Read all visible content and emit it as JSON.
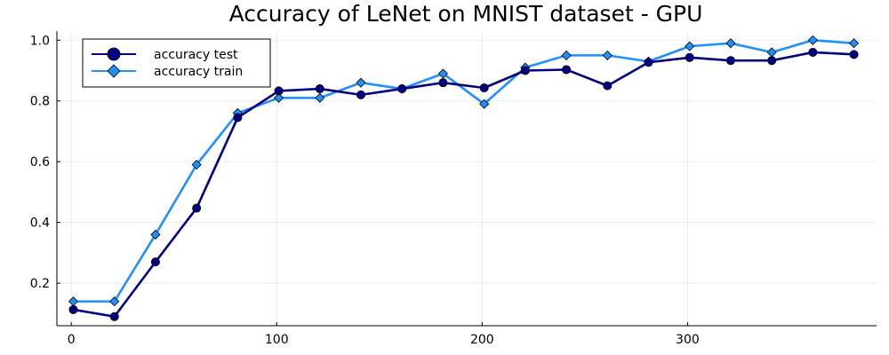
{
  "chart_data": {
    "type": "line",
    "title": "Accuracy of LeNet on MNIST dataset - GPU",
    "xlabel": "",
    "ylabel": "",
    "xlim": [
      -7,
      392
    ],
    "ylim": [
      0.06,
      1.03
    ],
    "xticks": [
      0,
      100,
      200,
      300
    ],
    "yticks": [
      0.2,
      0.4,
      0.6,
      0.8,
      1.0
    ],
    "xtick_labels": [
      "0",
      "100",
      "200",
      "300"
    ],
    "ytick_labels": [
      "0.2",
      "0.4",
      "0.6",
      "0.8",
      "1.0"
    ],
    "grid": true,
    "legend_position": "top-left",
    "x": [
      1,
      21,
      41,
      61,
      81,
      101,
      121,
      141,
      161,
      181,
      201,
      221,
      241,
      261,
      281,
      301,
      321,
      341,
      361,
      381
    ],
    "series": [
      {
        "name": "accuracy test",
        "color": "#000080",
        "marker": "circle",
        "values": [
          0.113,
          0.09,
          0.27,
          0.447,
          0.745,
          0.833,
          0.84,
          0.82,
          0.84,
          0.86,
          0.843,
          0.9,
          0.903,
          0.85,
          0.927,
          0.943,
          0.933,
          0.933,
          0.96,
          0.953
        ]
      },
      {
        "name": "accuracy train",
        "color": "#1e90ff",
        "marker": "diamond",
        "values": [
          0.14,
          0.14,
          0.36,
          0.59,
          0.76,
          0.81,
          0.81,
          0.86,
          0.84,
          0.89,
          0.79,
          0.91,
          0.95,
          0.95,
          0.93,
          0.98,
          0.99,
          0.96,
          1.0,
          0.99
        ]
      }
    ]
  }
}
